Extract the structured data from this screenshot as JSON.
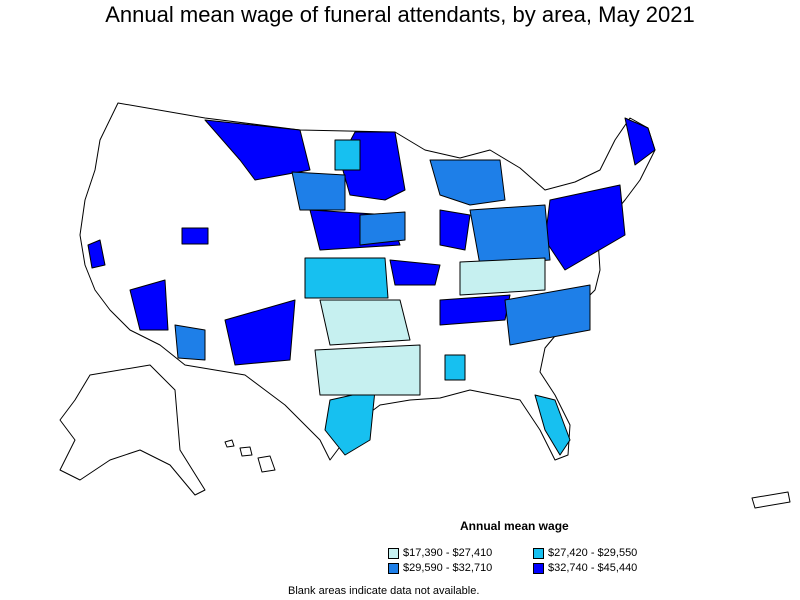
{
  "title": "Annual mean wage of funeral attendants, by area, May 2021",
  "legend": {
    "title": "Annual mean wage",
    "items": [
      {
        "label": "$17,390 - $27,410",
        "color": "#c6f0f0"
      },
      {
        "label": "$27,420 - $29,550",
        "color": "#17c0f0"
      },
      {
        "label": "$29,590 - $32,710",
        "color": "#1e7fe8"
      },
      {
        "label": "$32,740 - $45,440",
        "color": "#0000ff"
      }
    ]
  },
  "footnote": "Blank areas indicate data not available."
}
